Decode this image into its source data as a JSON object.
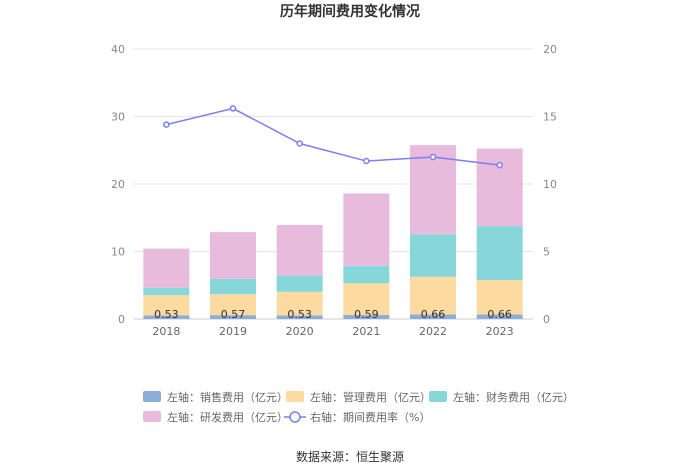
{
  "chart_data": {
    "type": "bar",
    "title": "历年期间费用变化情况",
    "categories": [
      "2018",
      "2019",
      "2020",
      "2021",
      "2022",
      "2023"
    ],
    "stacked": true,
    "y_left": {
      "ylim": [
        0,
        40
      ],
      "ticks": [
        0,
        10,
        20,
        30,
        40
      ]
    },
    "y_right": {
      "ylim": [
        0,
        20
      ],
      "ticks": [
        0,
        5,
        10,
        15,
        20
      ]
    },
    "grid": true,
    "legend_position": "bottom",
    "series": [
      {
        "name": "左轴：销售费用（亿元）",
        "axis": "left",
        "type": "bar",
        "color": "#8eacd8",
        "values": [
          0.53,
          0.57,
          0.53,
          0.59,
          0.66,
          0.66
        ],
        "show_labels": true
      },
      {
        "name": "左轴：管理费用（亿元）",
        "axis": "left",
        "type": "bar",
        "color": "#fddba0",
        "values": [
          3.0,
          3.1,
          3.5,
          4.7,
          5.6,
          5.1
        ]
      },
      {
        "name": "左轴：财务费用（亿元）",
        "axis": "left",
        "type": "bar",
        "color": "#86d6da",
        "values": [
          1.1,
          2.3,
          2.4,
          2.6,
          6.3,
          8.0
        ]
      },
      {
        "name": "左轴：研发费用（亿元）",
        "axis": "left",
        "type": "bar",
        "color": "#e8bbdc",
        "values": [
          5.8,
          6.9,
          7.5,
          10.7,
          13.2,
          11.5
        ]
      },
      {
        "name": "右轴：期间费用率（%）",
        "axis": "right",
        "type": "line",
        "color": "#7b7ff0",
        "values": [
          14.4,
          15.6,
          13.0,
          11.7,
          12.0,
          11.4
        ]
      }
    ]
  },
  "source_text": "数据来源：恒生聚源"
}
